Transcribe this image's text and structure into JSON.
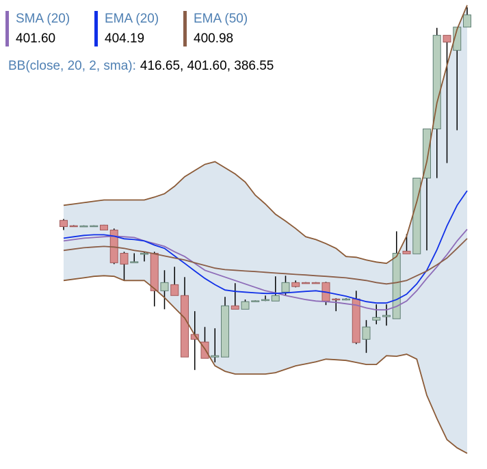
{
  "chart_data": {
    "type": "candlestick",
    "ylim": [
      385.5,
      417.0
    ],
    "up_color": "#b7cebd",
    "up_stroke": "#5f7f74",
    "down_color": "#d98d8d",
    "down_stroke": "#a25a5a",
    "wick_color": "#000000",
    "open": [
      402.2,
      401.84,
      401.82,
      401.83,
      401.88,
      401.55,
      399.99,
      399.38,
      399.95,
      399.99,
      397.47,
      397.88,
      397.15,
      394.54,
      394.03,
      393.02,
      393.02,
      396.46,
      396.23,
      396.78,
      396.83,
      396.78,
      397.38,
      398.02,
      398.02,
      398.02,
      398.02,
      396.92,
      396.88,
      396.92,
      394.21,
      395.5,
      395.73,
      395.59,
      400.13,
      399.95,
      405.04,
      408.34,
      414.63,
      413.62,
      415.18
    ],
    "high": [
      402.29,
      401.88,
      401.86,
      401.87,
      401.9,
      401.65,
      400.09,
      399.99,
      400.09,
      400.09,
      398.85,
      399.08,
      398.39,
      396.1,
      395.04,
      394.95,
      397.06,
      397.98,
      396.88,
      396.83,
      397.15,
      398.44,
      398.48,
      398.16,
      398.05,
      398.05,
      398.07,
      396.97,
      396.97,
      397.47,
      395.5,
      396.56,
      396.56,
      401.46,
      401.28,
      405.04,
      408.34,
      415.13,
      414.63,
      415.18,
      416.51
    ],
    "low": [
      401.55,
      401.8,
      401.79,
      401.8,
      401.55,
      399.26,
      398.16,
      399.35,
      399.44,
      396.42,
      396.23,
      397.15,
      393.02,
      392.15,
      392.93,
      392.66,
      393.02,
      396.23,
      396.23,
      396.74,
      396.78,
      396.78,
      397.15,
      397.7,
      397.98,
      397.98,
      396.51,
      396.1,
      396.83,
      393.89,
      393.3,
      395.22,
      395.13,
      395.59,
      399.95,
      399.95,
      400.18,
      405.04,
      406.05,
      408.25,
      415.18
    ],
    "close": [
      401.78,
      401.82,
      401.83,
      401.84,
      401.55,
      399.35,
      399.26,
      399.42,
      399.99,
      397.47,
      398.02,
      397.15,
      393.02,
      394.21,
      392.93,
      393.11,
      396.46,
      396.23,
      396.74,
      396.8,
      396.88,
      397.15,
      398.02,
      397.75,
      398.0,
      398.01,
      396.78,
      396.88,
      396.92,
      393.99,
      395.04,
      395.68,
      395.82,
      399.99,
      399.95,
      405.04,
      408.34,
      414.63,
      414.17,
      415.18,
      416.0
    ],
    "series": [
      {
        "name": "SMA (20)",
        "color": "#8d6bb8",
        "last_value_label": "401.60",
        "values": [
          400.82,
          400.91,
          401.0,
          401.05,
          401.1,
          401.14,
          401.1,
          401.05,
          400.82,
          400.64,
          400.45,
          400.09,
          399.77,
          399.31,
          398.85,
          398.62,
          398.39,
          398.16,
          397.93,
          397.7,
          397.47,
          397.33,
          397.15,
          397.01,
          396.88,
          396.78,
          396.74,
          396.69,
          396.6,
          396.51,
          396.32,
          396.19,
          396.19,
          396.42,
          396.78,
          397.47,
          398.3,
          399.08,
          399.9,
          400.82,
          401.6
        ]
      },
      {
        "name": "EMA (20)",
        "color": "#1030e8",
        "last_value_label": "404.19",
        "values": [
          401.0,
          401.1,
          401.19,
          401.23,
          401.23,
          401.14,
          400.96,
          400.91,
          400.82,
          400.54,
          400.32,
          399.81,
          399.31,
          398.8,
          398.3,
          397.88,
          397.52,
          397.43,
          397.38,
          397.33,
          397.29,
          397.29,
          397.33,
          397.38,
          397.43,
          397.47,
          397.38,
          397.24,
          397.11,
          396.92,
          396.74,
          396.65,
          396.65,
          396.88,
          397.24,
          397.93,
          398.85,
          400.22,
          401.83,
          403.21,
          404.19
        ]
      },
      {
        "name": "EMA (50)",
        "color": "#8b5e48",
        "last_value_label": "400.98",
        "values": [
          400.18,
          400.27,
          400.36,
          400.41,
          400.45,
          400.41,
          400.32,
          400.18,
          400.09,
          399.95,
          399.81,
          399.67,
          399.54,
          399.35,
          399.17,
          398.99,
          398.89,
          398.85,
          398.8,
          398.76,
          398.71,
          398.66,
          398.62,
          398.57,
          398.53,
          398.48,
          398.44,
          398.39,
          398.34,
          398.25,
          398.16,
          398.02,
          397.93,
          398.02,
          398.16,
          398.48,
          398.8,
          399.21,
          399.67,
          400.32,
          400.98
        ]
      }
    ],
    "bollinger": {
      "name": "BB(close, 20, 2, sma):",
      "values_label": "416.65, 401.60, 386.55",
      "line_color": "#8b5a36",
      "fill_color": "#dce6ef",
      "upper": [
        403.21,
        403.3,
        403.39,
        403.48,
        403.57,
        403.57,
        403.57,
        403.57,
        403.57,
        403.76,
        403.99,
        404.49,
        405.13,
        405.55,
        405.96,
        406.14,
        405.73,
        405.32,
        404.77,
        403.89,
        403.3,
        402.61,
        402.15,
        401.65,
        401.1,
        400.91,
        400.64,
        400.32,
        399.77,
        399.72,
        399.54,
        399.4,
        399.31,
        399.77,
        401.14,
        403.44,
        406.14,
        410.09,
        412.61,
        415.04,
        416.65
      ],
      "lower": [
        398.16,
        398.25,
        398.34,
        398.44,
        398.48,
        398.44,
        398.16,
        398.16,
        398.16,
        397.61,
        397.01,
        396.32,
        395.64,
        394.49,
        393.57,
        392.43,
        392.06,
        391.88,
        391.88,
        391.88,
        391.88,
        391.97,
        392.2,
        392.43,
        392.56,
        392.7,
        392.88,
        392.84,
        392.79,
        392.66,
        392.52,
        392.52,
        393.11,
        393.07,
        393.21,
        392.88,
        390.45,
        388.89,
        387.47,
        386.92,
        386.55
      ]
    }
  }
}
